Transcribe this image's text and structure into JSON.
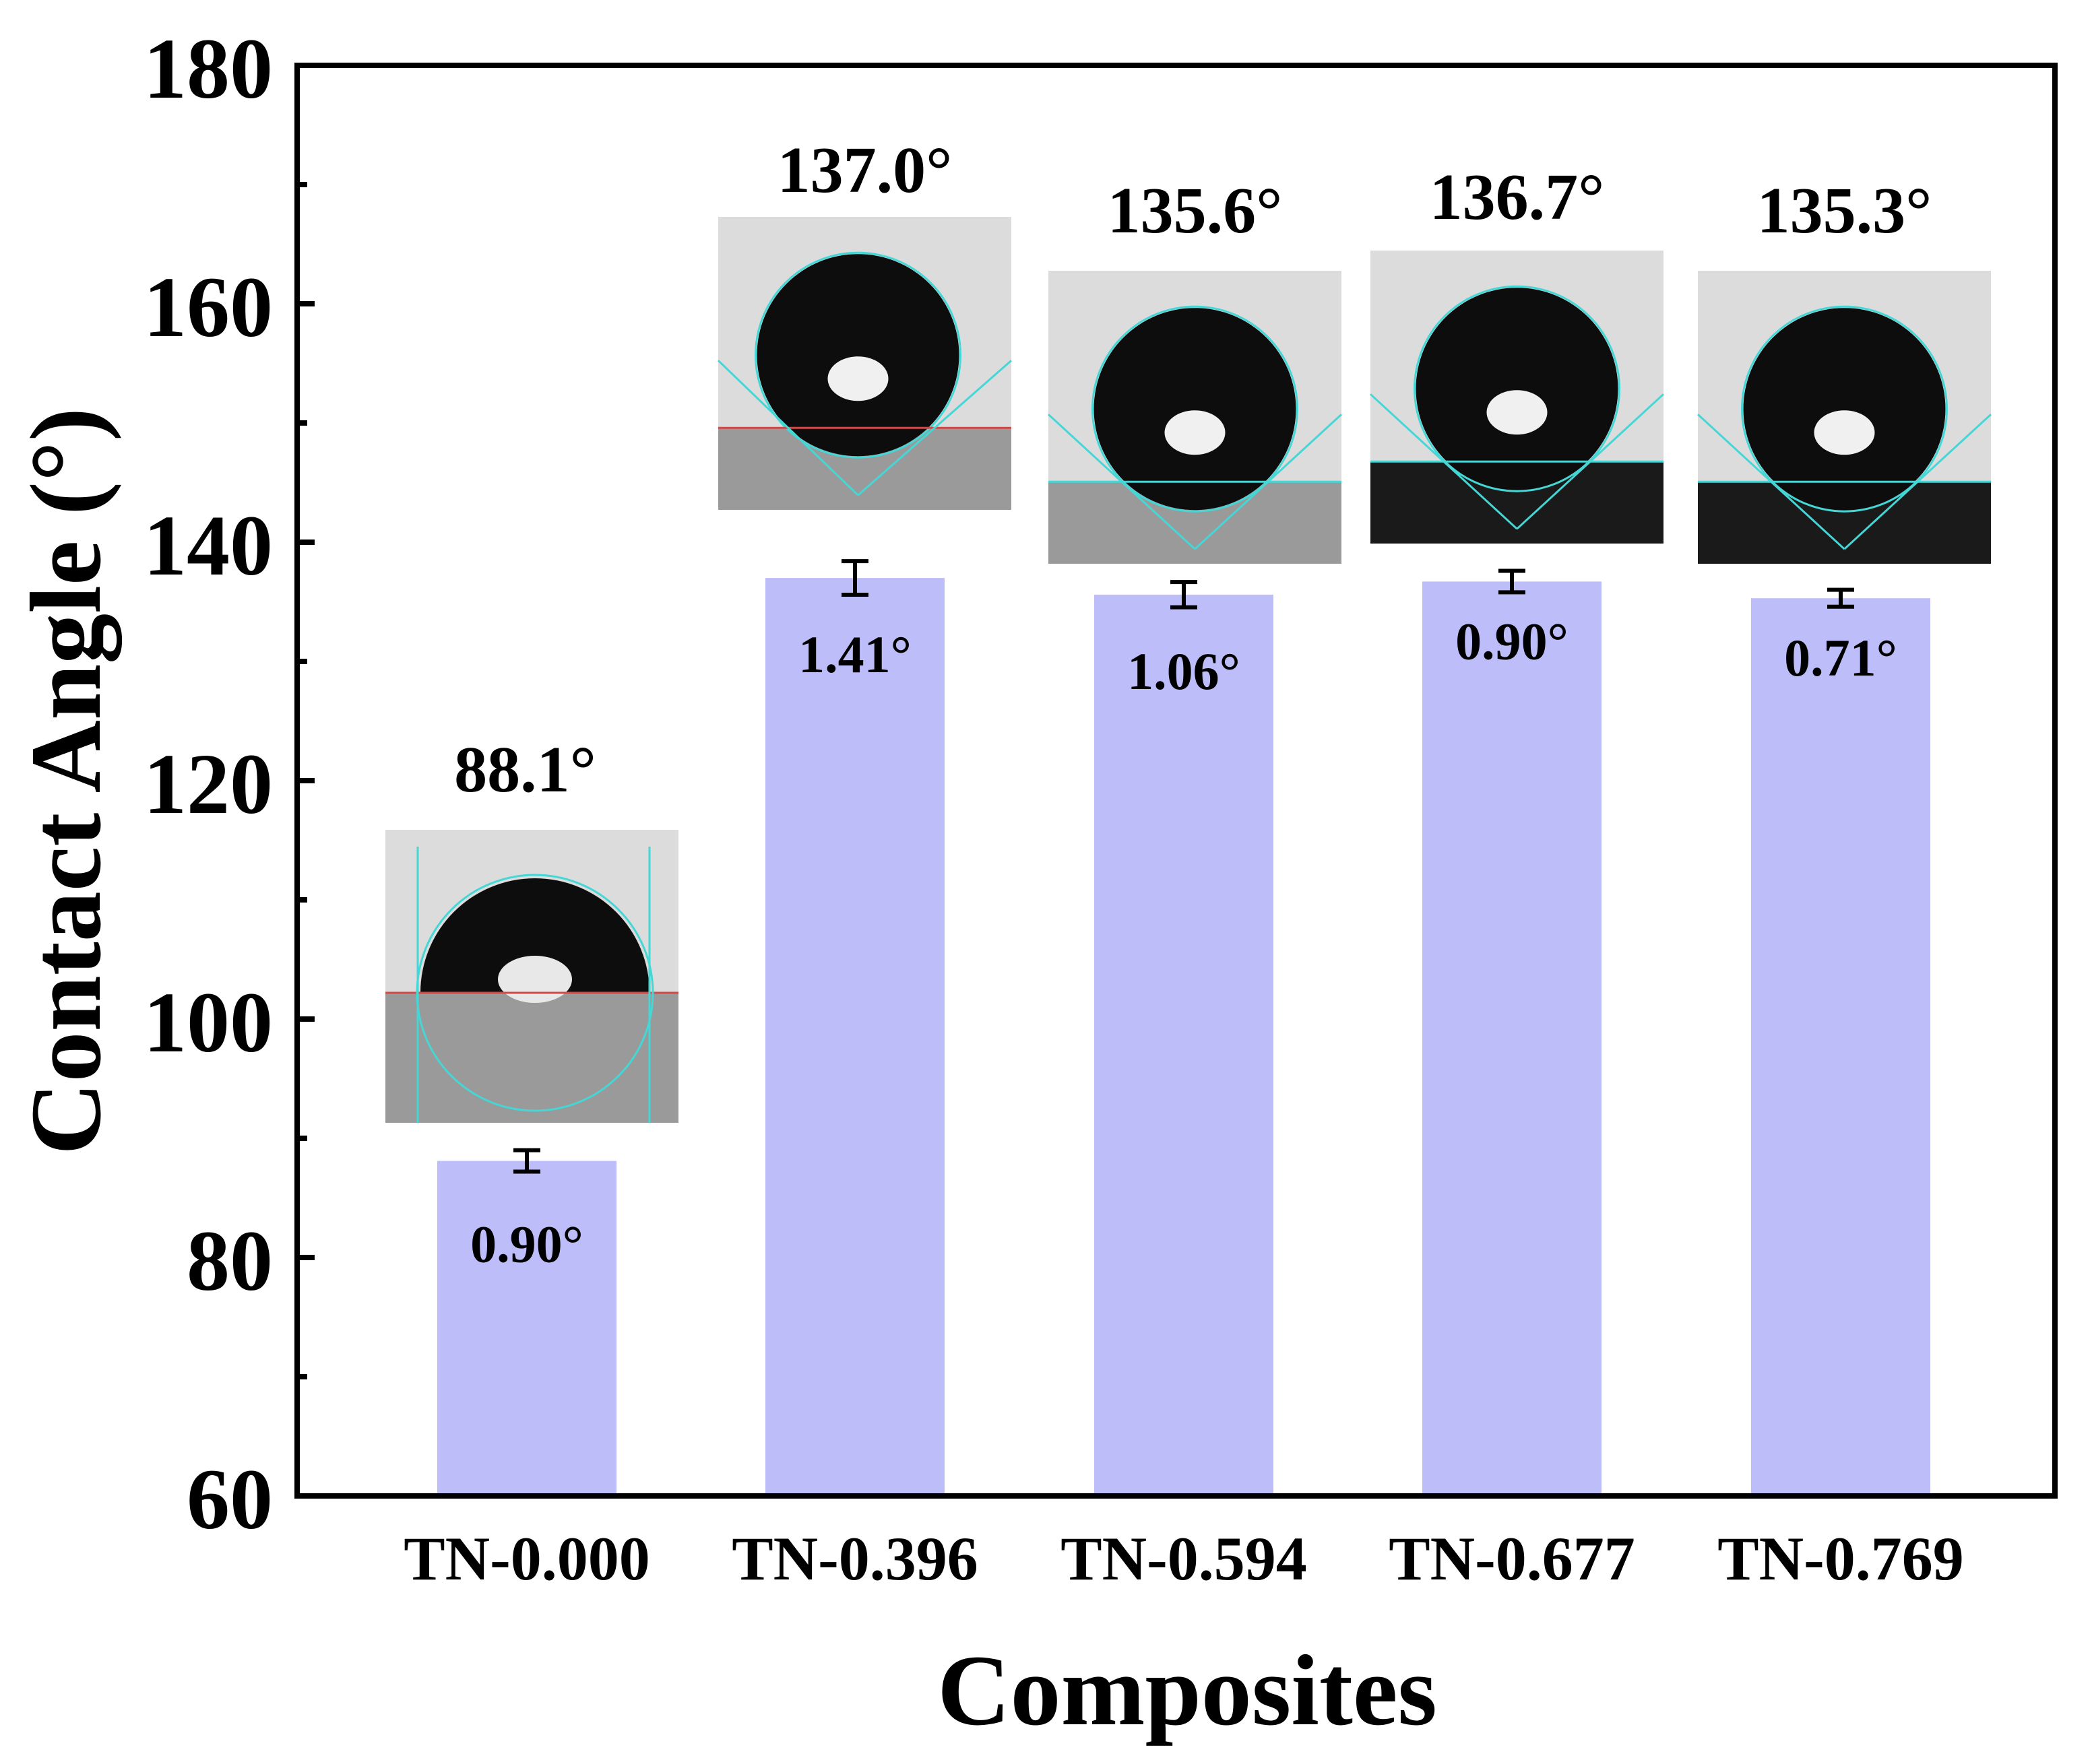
{
  "colors": {
    "bar": "#bdbdfa",
    "axis": "#000000",
    "photo_background": "#dcdcdc",
    "droplet": "#0d0d0d",
    "fit_line": "#45d6d6",
    "baseline": "#d04a4a"
  },
  "chart_data": {
    "type": "bar",
    "title": "",
    "xlabel": "Composites",
    "ylabel": "Contact Angle (°)",
    "ylim": [
      60,
      180
    ],
    "yticks": [
      60,
      80,
      100,
      120,
      140,
      160,
      180
    ],
    "grid": false,
    "categories": [
      "TN-0.000",
      "TN-0.396",
      "TN-0.594",
      "TN-0.677",
      "TN-0.769"
    ],
    "values": [
      88.1,
      137.0,
      135.6,
      136.7,
      135.3
    ],
    "errors": [
      0.9,
      1.41,
      1.06,
      0.9,
      0.71
    ],
    "value_labels": [
      "88.1°",
      "137.0°",
      "135.6°",
      "136.7°",
      "135.3°"
    ],
    "error_labels": [
      "0.90°",
      "1.41°",
      "1.06°",
      "0.90°",
      "0.71°"
    ],
    "insets": [
      {
        "name": "droplet-photo-tn-0-000",
        "depicts": "water droplet on TN-0.000 surface"
      },
      {
        "name": "droplet-photo-tn-0-396",
        "depicts": "water droplet on TN-0.396 surface"
      },
      {
        "name": "droplet-photo-tn-0-594",
        "depicts": "water droplet on TN-0.594 surface"
      },
      {
        "name": "droplet-photo-tn-0-677",
        "depicts": "water droplet on TN-0.677 surface"
      },
      {
        "name": "droplet-photo-tn-0-769",
        "depicts": "water droplet on TN-0.769 surface"
      }
    ]
  }
}
